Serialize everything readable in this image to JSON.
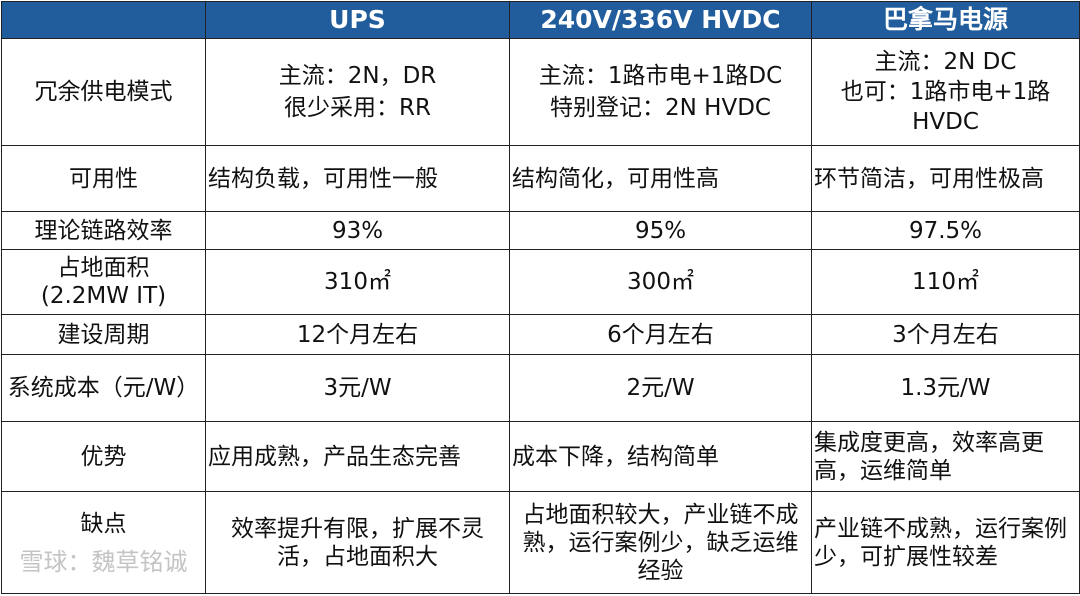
{
  "header": [
    "",
    "UPS",
    "240V/336V HVDC",
    "巴拿马电源"
  ],
  "colors": {
    "header_bg": "#215d9c",
    "header_text": "#ffffff",
    "border": "#222222"
  },
  "rows": [
    {
      "label": "冗余供电模式",
      "cells": [
        "主流：2N，DR\n很少采用：RR",
        "主流：1路市电+1路DC\n特别登记：2N HVDC",
        "主流：2N DC\n也可：1路市电+1路HVDC"
      ]
    },
    {
      "label": "可用性",
      "cells": [
        "结构负载，可用性一般",
        "结构简化，可用性高",
        "环节简洁，可用性极高"
      ]
    },
    {
      "label": "理论链路效率",
      "cells": [
        "93%",
        "95%",
        "97.5%"
      ]
    },
    {
      "label": "占地面积\n(2.2MW IT)",
      "cells": [
        "310㎡",
        "300㎡",
        "110㎡"
      ]
    },
    {
      "label": "建设周期",
      "cells": [
        "12个月左右",
        "6个月左右",
        "3个月左右"
      ]
    },
    {
      "label": "系统成本（元/W）",
      "cells": [
        "3元/W",
        "2元/W",
        "1.3元/W"
      ]
    },
    {
      "label": "优势",
      "cells": [
        "应用成熟，产品生态完善",
        "成本下降，结构简单",
        "集成度更高，效率高更高，运维简单"
      ]
    },
    {
      "label": "缺点",
      "cells": [
        "效率提升有限，扩展不灵活，占地面积大",
        "占地面积较大，产业链不成熟，运行案例少，缺乏运维经验",
        "产业链不成熟，运行案例少，可扩展性较差"
      ]
    }
  ],
  "watermark": "雪球：魏草铭诚"
}
